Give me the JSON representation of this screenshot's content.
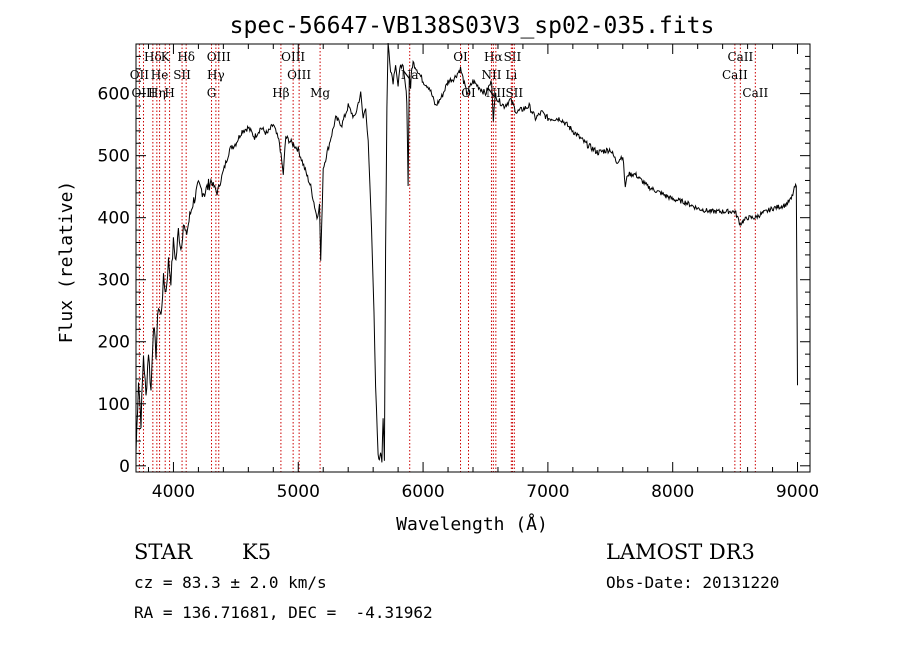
{
  "chart_data": {
    "type": "line",
    "title": "spec-56647-VB138S03V3_sp02-035.fits",
    "xlabel": "Wavelength (Å)",
    "ylabel": "Flux (relative)",
    "xlim": [
      3700,
      9100
    ],
    "ylim": [
      -10,
      680
    ],
    "xticks": [
      4000,
      5000,
      6000,
      7000,
      8000,
      9000
    ],
    "yticks": [
      0,
      100,
      200,
      300,
      400,
      500,
      600
    ],
    "grid": false,
    "line_color": "#000000",
    "marker_color": "#cc0000",
    "series": [
      {
        "x": [
          3700,
          3720,
          3740,
          3760,
          3780,
          3800,
          3820,
          3840,
          3860,
          3880,
          3900,
          3920,
          3940,
          3960,
          3980,
          4000,
          4020,
          4040,
          4060,
          4080,
          4100,
          4150,
          4200,
          4250,
          4300,
          4350,
          4400,
          4450,
          4500,
          4550,
          4600,
          4650,
          4700,
          4750,
          4800,
          4850,
          4880,
          4900,
          4950,
          5000,
          5050,
          5100,
          5150,
          5170,
          5180,
          5200,
          5250,
          5300,
          5350,
          5400,
          5450,
          5500,
          5520,
          5540,
          5560,
          5580,
          5600,
          5620,
          5640,
          5650,
          5660,
          5670,
          5680,
          5690,
          5700,
          5710,
          5720,
          5740,
          5760,
          5780,
          5800,
          5820,
          5840,
          5860,
          5870,
          5880,
          5890,
          5900,
          5910,
          5920,
          5950,
          6000,
          6050,
          6100,
          6150,
          6200,
          6250,
          6300,
          6350,
          6400,
          6450,
          6500,
          6550,
          6563,
          6580,
          6600,
          6650,
          6700,
          6750,
          6800,
          6850,
          6900,
          6950,
          7000,
          7100,
          7200,
          7300,
          7400,
          7500,
          7550,
          7600,
          7620,
          7640,
          7660,
          7700,
          7800,
          7900,
          8000,
          8100,
          8200,
          8300,
          8400,
          8500,
          8540,
          8600,
          8660,
          8700,
          8800,
          8900,
          8950,
          8980,
          8990,
          9000
        ],
        "y": [
          20,
          140,
          70,
          180,
          110,
          185,
          120,
          230,
          180,
          260,
          240,
          300,
          280,
          330,
          300,
          360,
          330,
          380,
          350,
          390,
          370,
          420,
          450,
          440,
          460,
          440,
          475,
          510,
          520,
          540,
          545,
          530,
          545,
          535,
          550,
          520,
          470,
          530,
          520,
          510,
          480,
          450,
          400,
          420,
          330,
          480,
          520,
          560,
          550,
          580,
          560,
          600,
          560,
          580,
          520,
          420,
          300,
          130,
          20,
          5,
          20,
          10,
          80,
          10,
          350,
          580,
          680,
          640,
          620,
          650,
          610,
          650,
          640,
          610,
          590,
          450,
          630,
          610,
          640,
          650,
          640,
          620,
          610,
          580,
          595,
          620,
          625,
          640,
          600,
          620,
          610,
          600,
          620,
          560,
          600,
          590,
          580,
          590,
          570,
          575,
          580,
          560,
          570,
          560,
          560,
          540,
          520,
          505,
          510,
          490,
          500,
          450,
          470,
          470,
          470,
          450,
          440,
          430,
          425,
          415,
          410,
          410,
          410,
          390,
          400,
          400,
          405,
          415,
          420,
          430,
          450,
          450,
          130
        ]
      }
    ],
    "markers": [
      {
        "name": "Hδ",
        "wave": 3835,
        "row": 0
      },
      {
        "name": "OII",
        "wave": 3727,
        "row": 1
      },
      {
        "name": "OIII",
        "wave": 3760,
        "row": 2
      },
      {
        "name": "K",
        "wave": 3934,
        "row": 0
      },
      {
        "name": "He",
        "wave": 3889,
        "row": 1
      },
      {
        "name": "Hη",
        "wave": 3867,
        "row": 2
      },
      {
        "name": "SII",
        "wave": 4069,
        "row": 1
      },
      {
        "name": "H",
        "wave": 3969,
        "row": 2
      },
      {
        "name": "Hδ",
        "wave": 4102,
        "row": 0
      },
      {
        "name": "OIII",
        "wave": 4363,
        "row": 0
      },
      {
        "name": "Hγ",
        "wave": 4340,
        "row": 1
      },
      {
        "name": "G",
        "wave": 4305,
        "row": 2
      },
      {
        "name": "Hβ",
        "wave": 4861,
        "row": 2
      },
      {
        "name": "OIII",
        "wave": 4959,
        "row": 0
      },
      {
        "name": "OIII",
        "wave": 5007,
        "row": 1
      },
      {
        "name": "Mg",
        "wave": 5175,
        "row": 2
      },
      {
        "name": "Na",
        "wave": 5893,
        "row": 1
      },
      {
        "name": "OI",
        "wave": 6300,
        "row": 0
      },
      {
        "name": "OI",
        "wave": 6364,
        "row": 2
      },
      {
        "name": "Hα",
        "wave": 6563,
        "row": 0
      },
      {
        "name": "NII",
        "wave": 6548,
        "row": 1
      },
      {
        "name": "NII",
        "wave": 6583,
        "row": 2
      },
      {
        "name": "SII",
        "wave": 6716,
        "row": 0
      },
      {
        "name": "Li",
        "wave": 6707,
        "row": 1
      },
      {
        "name": "SII",
        "wave": 6731,
        "row": 2
      },
      {
        "name": "CaII",
        "wave": 8542,
        "row": 0
      },
      {
        "name": "CaII",
        "wave": 8498,
        "row": 1
      },
      {
        "name": "CaII",
        "wave": 8662,
        "row": 2
      }
    ]
  },
  "info": {
    "class": "STAR",
    "subclass": "K5",
    "survey": "LAMOST DR3",
    "cz": "cz = 83.3 ± 2.0 km/s",
    "obs_date": "Obs-Date: 20131220",
    "radec": "RA = 136.71681, DEC =  -4.31962"
  }
}
